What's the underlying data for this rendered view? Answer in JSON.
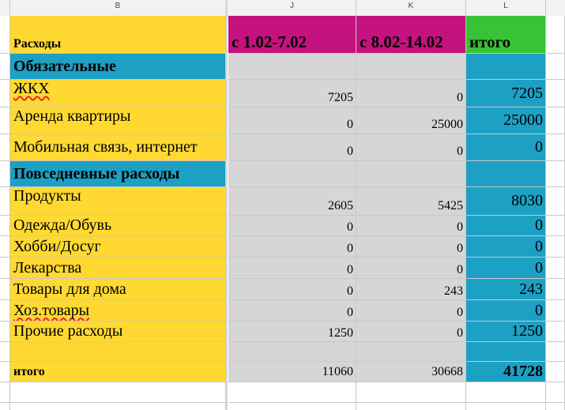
{
  "columns": {
    "b": "B",
    "j": "J",
    "k": "K",
    "l": "L"
  },
  "header": {
    "label": "Расходы",
    "week1": "с 1.02-7.02",
    "week2": "с 8.02-14.02",
    "total": "итого"
  },
  "sections": {
    "mandatory": "Обязательные",
    "daily": "Повседневные расходы"
  },
  "rows": [
    {
      "name": "ЖКХ",
      "w1": "7205",
      "w2": "0",
      "total": "7205"
    },
    {
      "name": "Аренда квартиры",
      "w1": "0",
      "w2": "25000",
      "total": "25000"
    },
    {
      "name": "Мобильная связь, интернет",
      "w1": "0",
      "w2": "0",
      "total": "0"
    },
    {
      "name": "Продукты",
      "w1": "2605",
      "w2": "5425",
      "total": "8030"
    },
    {
      "name": "Одежда/Обувь",
      "w1": "0",
      "w2": "0",
      "total": "0"
    },
    {
      "name": "Хобби/Досуг",
      "w1": "0",
      "w2": "0",
      "total": "0"
    },
    {
      "name": "Лекарства",
      "w1": "0",
      "w2": "0",
      "total": "0"
    },
    {
      "name": "Товары для дома",
      "w1": "0",
      "w2": "243",
      "total": "243"
    },
    {
      "name": "Хоз.товары",
      "w1": "0",
      "w2": "0",
      "total": "0"
    },
    {
      "name": "Прочие расходы",
      "w1": "1250",
      "w2": "0",
      "total": "1250"
    }
  ],
  "footer": {
    "label": "итого",
    "w1": "11060",
    "w2": "30668",
    "total": "41728"
  },
  "colors": {
    "yellow": "#ffd932",
    "blue": "#1ca0c4",
    "gray": "#d6d6d6",
    "magenta": "#c4127e",
    "green": "#38c236"
  }
}
